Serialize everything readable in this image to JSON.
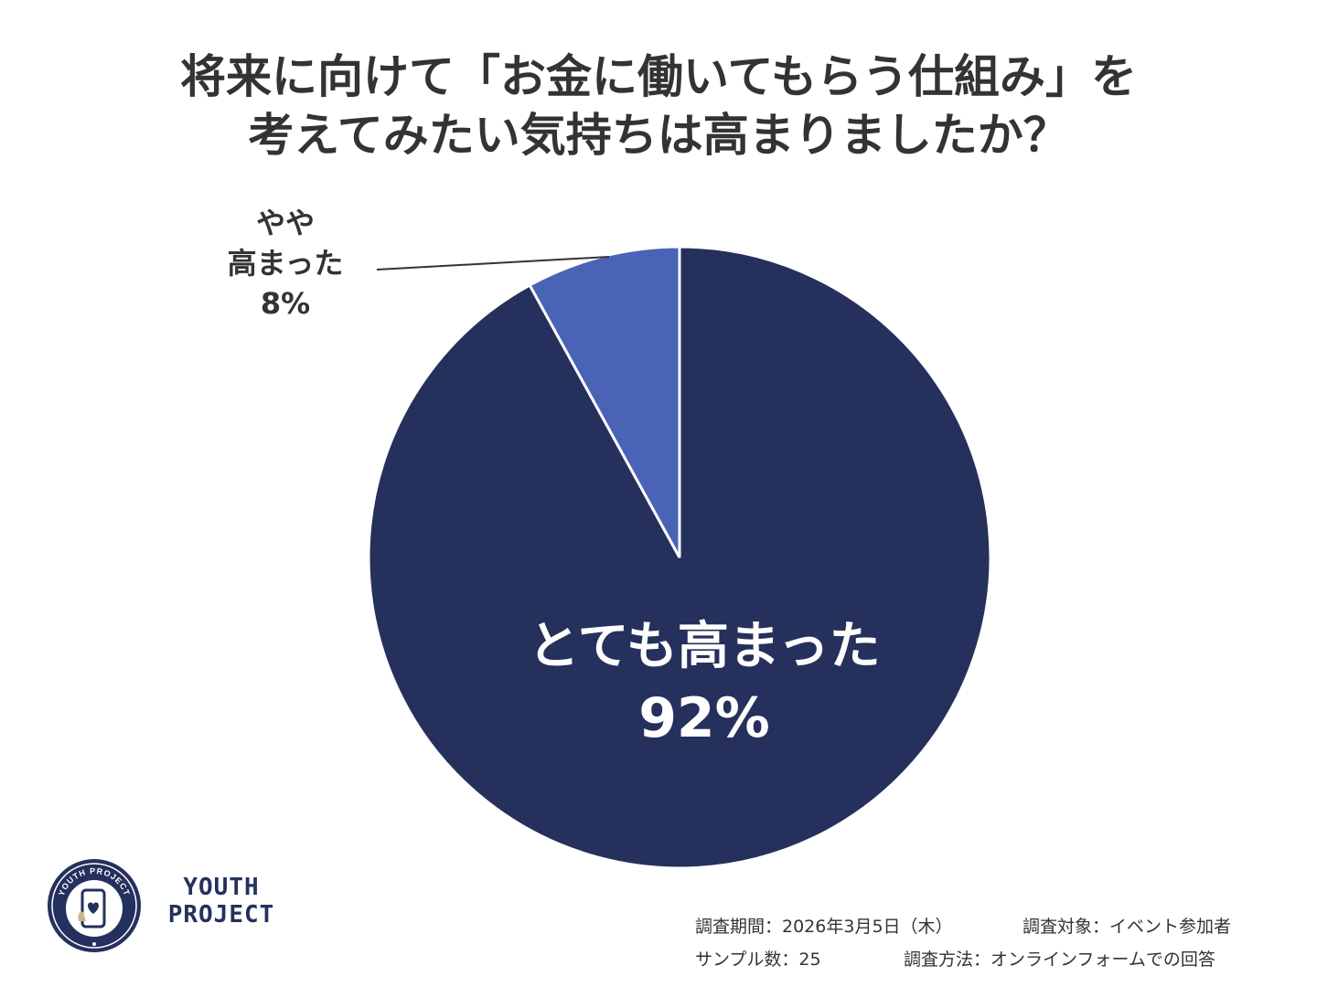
{
  "title_lines": [
    "将来に向けて「お金に働いてもらう仕組み」を",
    "考えてみたい気持ちは高まりましたか？"
  ],
  "chart_data": {
    "type": "pie",
    "title": "将来に向けて「お金に働いてもらう仕組み」を考えてみたい気持ちは高まりましたか？",
    "slices": [
      {
        "label": "とても高まった",
        "value": 92,
        "value_label": "92%",
        "color": "#25305c"
      },
      {
        "label": "やや高まった",
        "value": 8,
        "value_label": "8%",
        "color": "#4a63b6"
      }
    ],
    "start_angle_deg": 0,
    "direction": "clockwise",
    "slice_border_color": "#ffffff",
    "legend": "none"
  },
  "labels": {
    "small_slice_lines": [
      "やや",
      "高まった"
    ],
    "small_slice_pct": "8%",
    "large_slice_line": "とても高まった",
    "large_slice_pct": "92%"
  },
  "brand": {
    "line1": "YOUTH",
    "line2": "PROJECT",
    "logo_ring_text": "YOUTH PROJECT",
    "color": "#24305e"
  },
  "footer": {
    "survey_period": "調査期間：2026年3月5日（木）",
    "survey_target": "調査対象：イベント参加者",
    "sample_size": "サンプル数：25",
    "survey_method": "調査方法：オンラインフォームでの回答"
  }
}
